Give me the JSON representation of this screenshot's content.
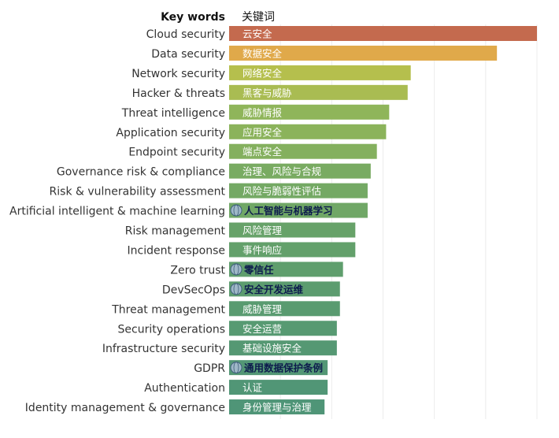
{
  "chart_data": {
    "type": "bar",
    "orientation": "horizontal",
    "title": "",
    "header_left": "Key words",
    "header_right": "关键词",
    "xlim": [
      0,
      100
    ],
    "categories": [
      "Cloud security",
      "Data security",
      "Network security",
      "Hacker & threats",
      "Threat intelligence",
      "Application security",
      "Endpoint security",
      "Governance risk & compliance",
      "Risk & vulnerability assessment",
      "Artificial intelligent & machine learning",
      "Risk management",
      "Incident response",
      "Zero trust",
      "DevSecOps",
      "Threat management",
      "Security operations",
      "Infrastructure security",
      "GDPR",
      "Authentication",
      "Identity management & governance"
    ],
    "labels_cn": [
      "云安全",
      "数据安全",
      "网络安全",
      "黑客与威胁",
      "威胁情报",
      "应用安全",
      "端点安全",
      "治理、风险与合规",
      "风险与脆弱性评估",
      "人工智能与机器学习",
      "风险管理",
      "事件响应",
      "零信任",
      "安全开发运维",
      "威胁管理",
      "安全运营",
      "基础设施安全",
      "通用数据保护条例",
      "认证",
      "身份管理与治理"
    ],
    "highlighted": [
      false,
      false,
      false,
      false,
      false,
      false,
      false,
      false,
      false,
      true,
      false,
      false,
      true,
      true,
      false,
      false,
      false,
      true,
      false,
      false
    ],
    "values": [
      100,
      87,
      59,
      58,
      52,
      51,
      48,
      46,
      45,
      45,
      41,
      41,
      37,
      36,
      36,
      35,
      35,
      32,
      32,
      31
    ],
    "colors": [
      "#c46a4e",
      "#e0a94a",
      "#b5bf4d",
      "#a9bc52",
      "#8fb55a",
      "#8bb35b",
      "#84b05e",
      "#79ab62",
      "#74a964",
      "#70a766",
      "#67a269",
      "#63a06b",
      "#5f9e6d",
      "#5c9c6f",
      "#599b70",
      "#579a72",
      "#559873",
      "#539775",
      "#519676",
      "#4f9577"
    ]
  }
}
